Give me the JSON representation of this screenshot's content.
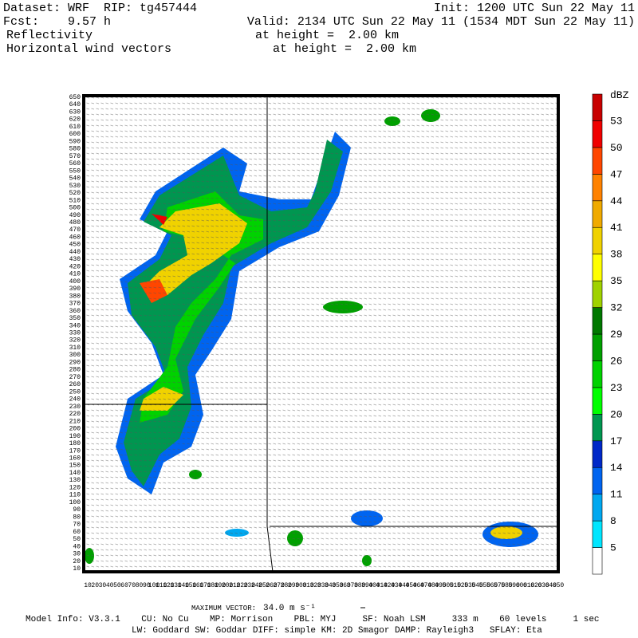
{
  "header": {
    "dataset": "Dataset: WRF  RIP: tg457444",
    "init": "Init: 1200 UTC Sun 22 May 11",
    "fcst": "Fcst:    9.57 h",
    "valid": "Valid: 2134 UTC Sun 22 May 11 (1534 MDT Sun 22 May 11)",
    "field1": "Reflectivity",
    "field1_level": "at height =  2.00 km",
    "field2": "Horizontal wind vectors",
    "field2_level": "at height =  2.00 km"
  },
  "colorbar": {
    "unit": "dBZ",
    "labels": [
      "5",
      "8",
      "11",
      "14",
      "17",
      "20",
      "23",
      "26",
      "29",
      "32",
      "35",
      "38",
      "41",
      "44",
      "47",
      "50",
      "53"
    ],
    "colors": [
      "#ffffff",
      "#00e6ff",
      "#00a8f0",
      "#0064f0",
      "#0028c8",
      "#009650",
      "#00ff00",
      "#00d200",
      "#00a000",
      "#007800",
      "#a0d200",
      "#ffff00",
      "#f0d200",
      "#f0aa00",
      "#ff8200",
      "#ff4600",
      "#f00000",
      "#c80000"
    ]
  },
  "axis": {
    "labels": [
      "10",
      "20",
      "30",
      "40",
      "50",
      "60",
      "70",
      "80",
      "90",
      "100",
      "110",
      "120",
      "130",
      "140",
      "150",
      "160",
      "170",
      "180",
      "190",
      "200",
      "210",
      "220",
      "230",
      "240",
      "250",
      "260",
      "270",
      "280",
      "290",
      "300",
      "310",
      "320",
      "330",
      "340",
      "350",
      "360",
      "370",
      "380",
      "390",
      "400",
      "410",
      "420",
      "430",
      "440",
      "450",
      "460",
      "470",
      "480",
      "490",
      "500",
      "510",
      "520",
      "530",
      "540",
      "550",
      "560",
      "570",
      "580",
      "590",
      "600",
      "610",
      "620",
      "630",
      "640",
      "650"
    ]
  },
  "footer": {
    "max_vector_label": "MAXIMUM VECTOR:",
    "max_vector_value": "34.0 m s⁻¹",
    "model_info": "Model Info: V3.3.1    CU: No Cu    MP: Morrison    PBL: MYJ     SF: Noah LSM     333 m    60 levels     1 sec",
    "physics": "LW: Goddard SW: Goddar DIFF: simple KM: 2D Smagor DAMP: Rayleigh3   SFLAY: Eta"
  }
}
